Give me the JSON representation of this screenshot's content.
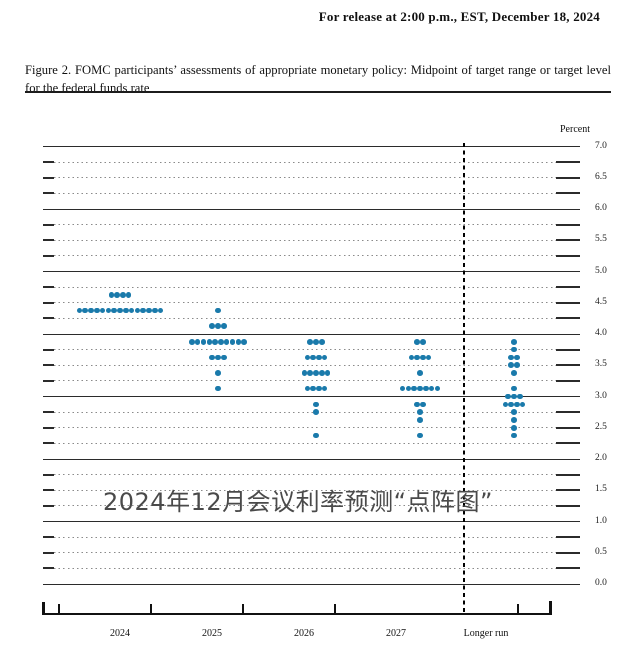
{
  "release_line": "For release at 2:00 p.m., EST, December 18, 2024",
  "figure_caption": "Figure 2.  FOMC participants’ assessments of appropriate monetary policy:  Midpoint of target range or target level for the federal funds rate",
  "watermark": "2024年12月会议利率预测“点阵图”",
  "chart_data": {
    "type": "scatter",
    "title": "FOMC participants' assessments of appropriate monetary policy: Midpoint of target range or target level for the federal funds rate",
    "ylabel": "Percent",
    "xlabel": "",
    "ylim": [
      0.0,
      7.0
    ],
    "gridline_step": 0.25,
    "solid_gridline_step": 1.0,
    "ytick_labels": [
      "7.0",
      "6.5",
      "6.0",
      "5.5",
      "5.0",
      "4.5",
      "4.0",
      "3.5",
      "3.0",
      "2.5",
      "2.0",
      "1.5",
      "1.0",
      "0.5",
      "0.0"
    ],
    "legend_position": "none",
    "grid": true,
    "participants_per_column": 19,
    "dot_color": "#1a7aab",
    "categories": [
      "2024",
      "2025",
      "2026",
      "2027",
      "Longer run"
    ],
    "separator_before_category": "Longer run",
    "series": [
      {
        "category": "2024",
        "dots": [
          {
            "rate": 4.625,
            "count": 4
          },
          {
            "rate": 4.375,
            "count": 15
          }
        ]
      },
      {
        "category": "2025",
        "dots": [
          {
            "rate": 4.375,
            "count": 1
          },
          {
            "rate": 4.125,
            "count": 3
          },
          {
            "rate": 3.875,
            "count": 10
          },
          {
            "rate": 3.625,
            "count": 3
          },
          {
            "rate": 3.375,
            "count": 1
          },
          {
            "rate": 3.125,
            "count": 1
          }
        ]
      },
      {
        "category": "2026",
        "dots": [
          {
            "rate": 3.875,
            "count": 3
          },
          {
            "rate": 3.625,
            "count": 4
          },
          {
            "rate": 3.375,
            "count": 5
          },
          {
            "rate": 3.125,
            "count": 4
          },
          {
            "rate": 2.875,
            "count": 1
          },
          {
            "rate": 2.75,
            "count": 1
          },
          {
            "rate": 2.375,
            "count": 1
          }
        ]
      },
      {
        "category": "2027",
        "dots": [
          {
            "rate": 3.875,
            "count": 2
          },
          {
            "rate": 3.625,
            "count": 4
          },
          {
            "rate": 3.375,
            "count": 1
          },
          {
            "rate": 3.125,
            "count": 7
          },
          {
            "rate": 2.875,
            "count": 2
          },
          {
            "rate": 2.75,
            "count": 1
          },
          {
            "rate": 2.625,
            "count": 1
          },
          {
            "rate": 2.375,
            "count": 1
          }
        ]
      },
      {
        "category": "Longer run",
        "dots": [
          {
            "rate": 3.875,
            "count": 1
          },
          {
            "rate": 3.75,
            "count": 1
          },
          {
            "rate": 3.625,
            "count": 2
          },
          {
            "rate": 3.5,
            "count": 2
          },
          {
            "rate": 3.375,
            "count": 1
          },
          {
            "rate": 3.125,
            "count": 1
          },
          {
            "rate": 3.0,
            "count": 3
          },
          {
            "rate": 2.875,
            "count": 4
          },
          {
            "rate": 2.75,
            "count": 1
          },
          {
            "rate": 2.625,
            "count": 1
          },
          {
            "rate": 2.5,
            "count": 1
          },
          {
            "rate": 2.375,
            "count": 1
          }
        ]
      }
    ]
  }
}
